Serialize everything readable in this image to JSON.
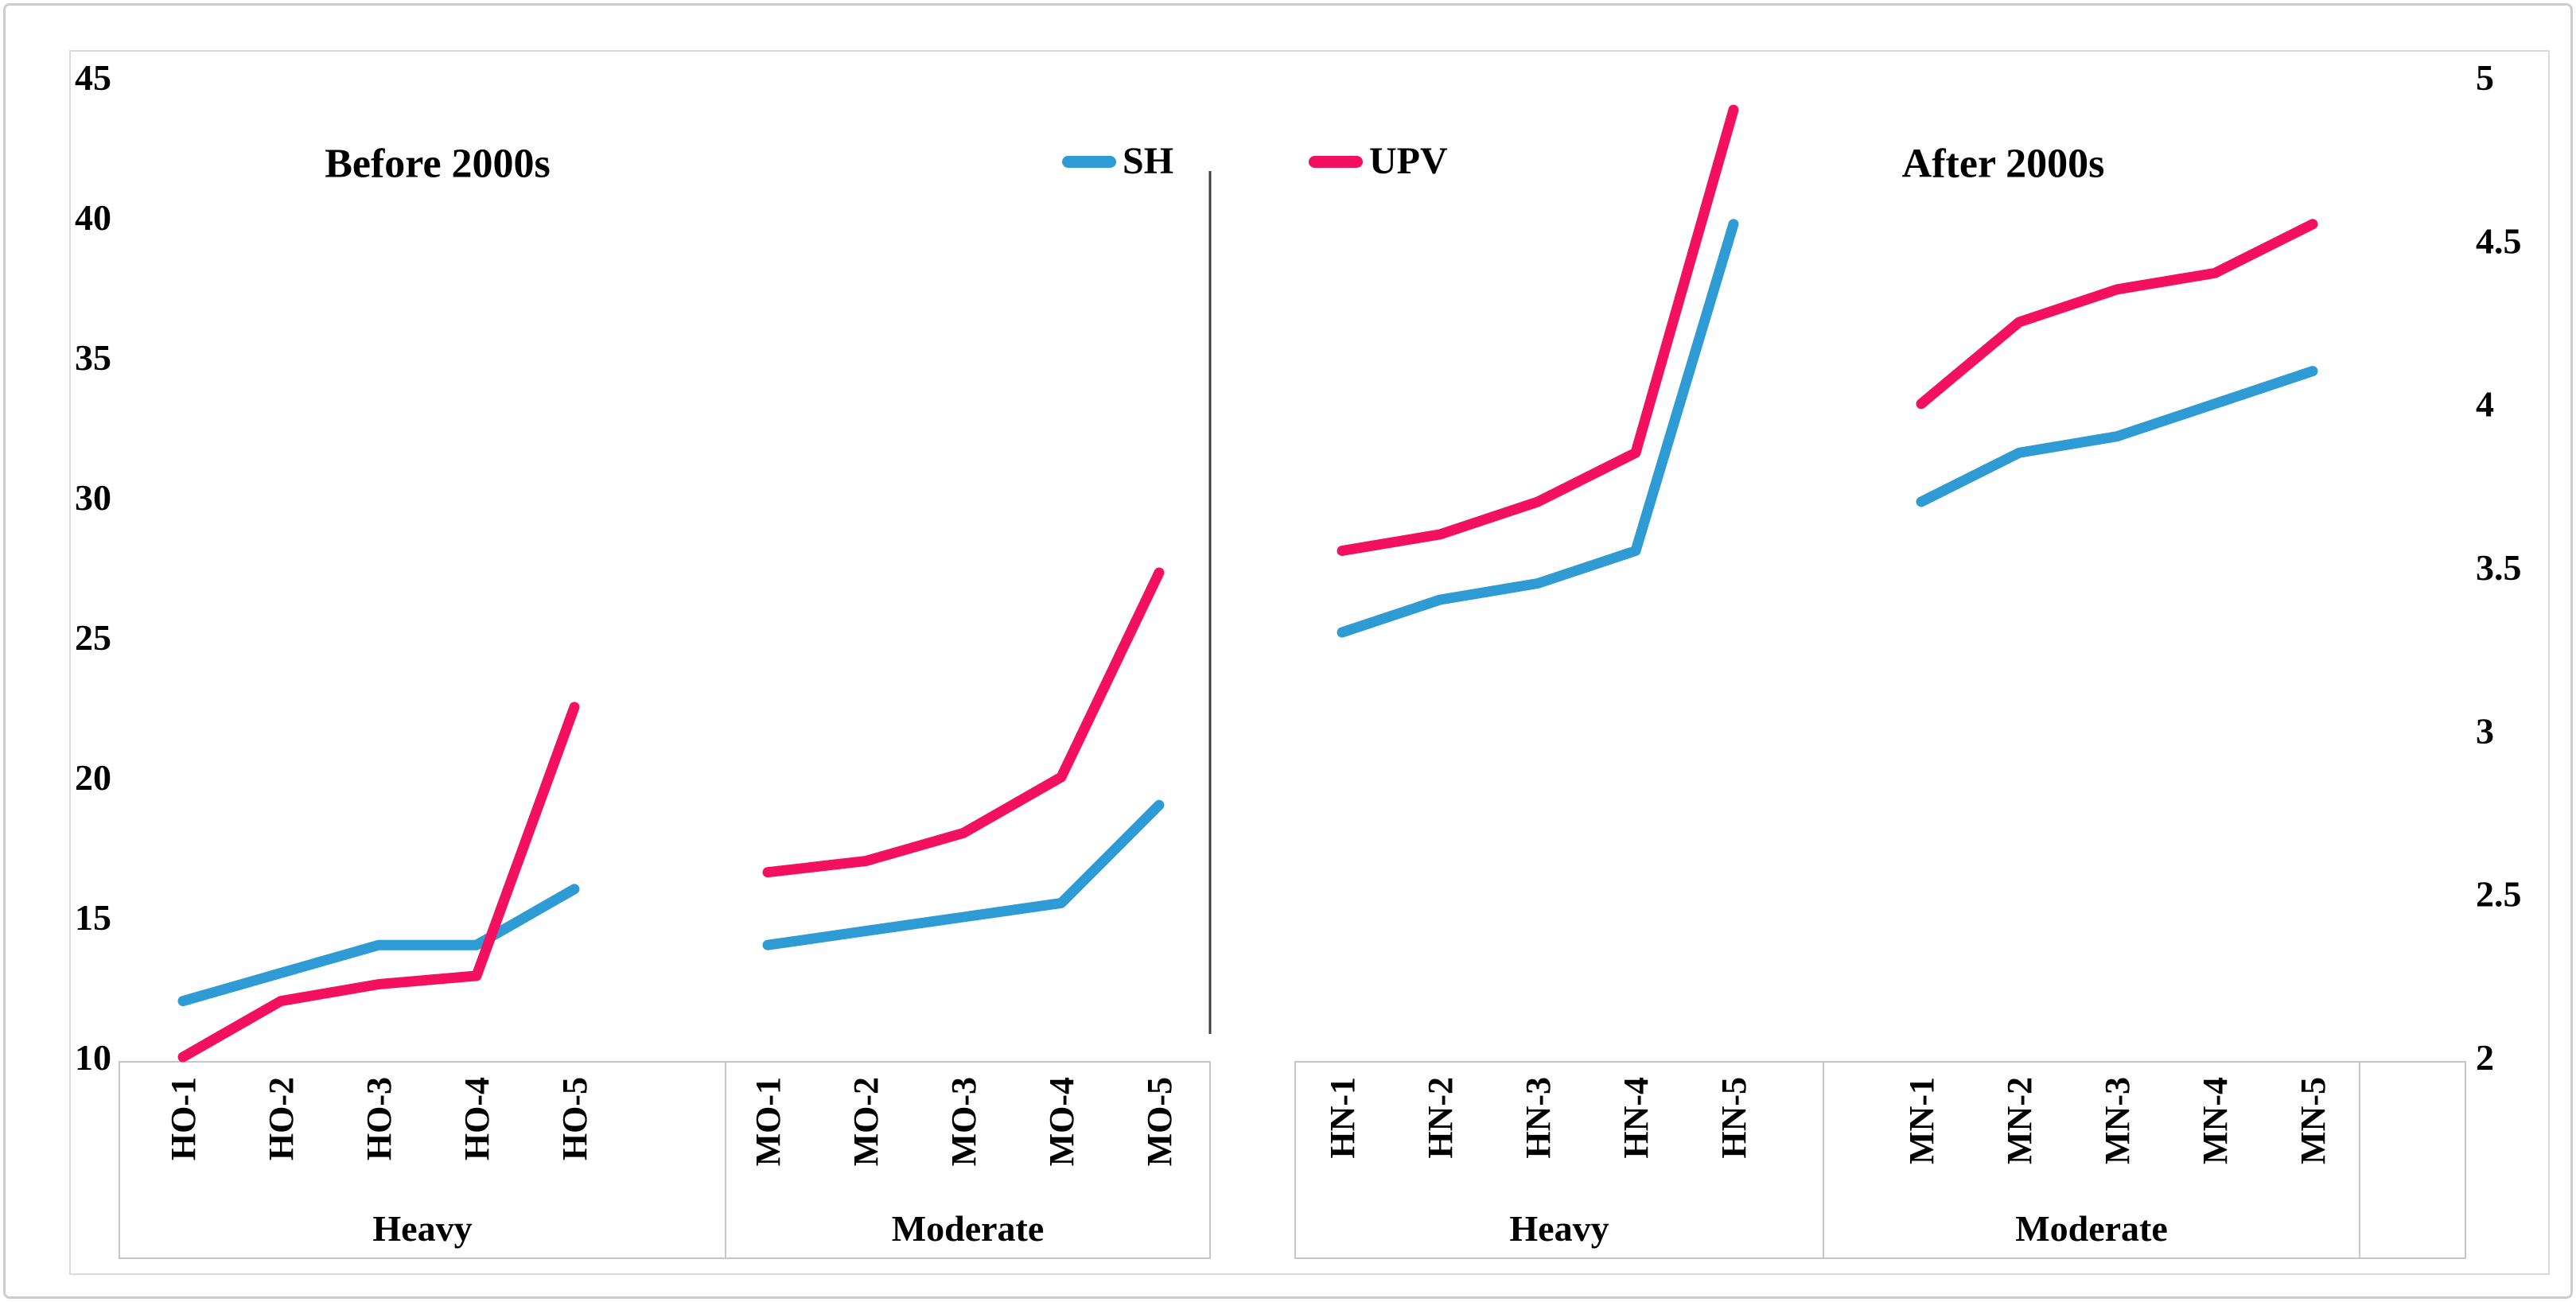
{
  "legend": {
    "items": [
      {
        "label": "SH",
        "color": "#2E9BD5"
      },
      {
        "label": "UPV",
        "color": "#F3115F"
      }
    ]
  },
  "annotations": [
    {
      "text": "Before 2000s"
    },
    {
      "text": "After 2000s"
    }
  ],
  "colors": {
    "sh": "#2E9BD5",
    "upv": "#F3115F",
    "text": "#000000",
    "chart_border": "#DBDBDB",
    "band_border": "#C6C6C6",
    "divider": "#3F3F3F"
  },
  "chart_data": {
    "type": "line",
    "title": "",
    "xlabel": "",
    "ylabel_left": "",
    "ylabel_right": "",
    "grid": false,
    "legend_position": "top-center",
    "legend_entries": [
      "SH",
      "UPV"
    ],
    "left_axis": {
      "min": 10,
      "max": 45,
      "tick_step": 5,
      "ticks": [
        "45",
        "40",
        "35",
        "30",
        "25",
        "20",
        "15",
        "10"
      ]
    },
    "right_axis": {
      "min": 2,
      "max": 5,
      "tick_step": 0.5,
      "ticks": [
        "5",
        "4.5",
        "4",
        "3.5",
        "3",
        "2.5",
        "2"
      ]
    },
    "groups": [
      {
        "name": "Heavy",
        "period": "Before 2000s",
        "value_axis": "left",
        "categories": [
          "HO-1",
          "HO-2",
          "HO-3",
          "HO-4",
          "HO-5"
        ],
        "series": [
          {
            "name": "SH",
            "color": "#2E9BD5",
            "values": [
              12,
              13,
              14,
              14,
              16
            ]
          },
          {
            "name": "UPV",
            "color": "#F3115F",
            "values": [
              10,
              12,
              12.6,
              12.9,
              22.5
            ]
          }
        ]
      },
      {
        "name": "Moderate",
        "period": "Before 2000s",
        "value_axis": "left",
        "categories": [
          "MO-1",
          "MO-2",
          "MO-3",
          "MO-4",
          "MO-5"
        ],
        "series": [
          {
            "name": "SH",
            "color": "#2E9BD5",
            "values": [
              14,
              14.5,
              15,
              15.5,
              19
            ]
          },
          {
            "name": "UPV",
            "color": "#F3115F",
            "values": [
              16.6,
              17,
              18,
              20,
              27.3
            ]
          }
        ]
      },
      {
        "name": "Heavy",
        "period": "After 2000s",
        "value_axis": "right",
        "categories": [
          "HN-1",
          "HN-2",
          "HN-3",
          "HN-4",
          "HN-5"
        ],
        "series": [
          {
            "name": "SH",
            "color": "#2E9BD5",
            "values": [
              3.3,
              3.4,
              3.45,
              3.55,
              4.55
            ]
          },
          {
            "name": "UPV",
            "color": "#F3115F",
            "values": [
              3.55,
              3.6,
              3.7,
              3.85,
              4.9
            ]
          }
        ]
      },
      {
        "name": "Moderate",
        "period": "After 2000s",
        "value_axis": "right",
        "categories": [
          "MN-1",
          "MN-2",
          "MN-3",
          "MN-4",
          "MN-5"
        ],
        "series": [
          {
            "name": "SH",
            "color": "#2E9BD5",
            "values": [
              3.7,
              3.85,
              3.9,
              4.0,
              4.1
            ]
          },
          {
            "name": "UPV",
            "color": "#F3115F",
            "values": [
              4.0,
              4.25,
              4.35,
              4.4,
              4.55
            ]
          }
        ]
      }
    ]
  }
}
